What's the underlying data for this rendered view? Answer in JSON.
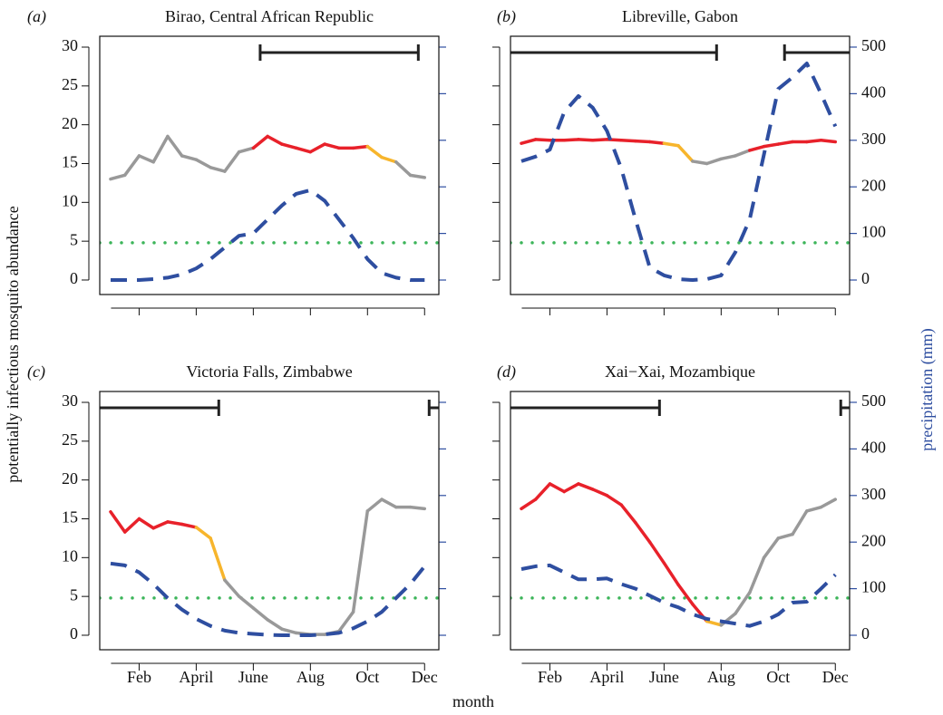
{
  "y_label": "potentially infectious mosquito abundance",
  "y2_label": "precipitation (mm)",
  "x_label": "month",
  "chart_data": [
    {
      "type": "line",
      "panel_label": "(a)",
      "title": "Birao, Central African Republic",
      "x": [
        1,
        1.5,
        2,
        2.5,
        3,
        3.5,
        4,
        4.5,
        5,
        5.5,
        6,
        6.5,
        7,
        7.5,
        8,
        8.5,
        9,
        9.5,
        10,
        10.5,
        11,
        11.5,
        12
      ],
      "series": [
        {
          "values": [
            13,
            13.5,
            16,
            15.2,
            18.5,
            16,
            15.5,
            14.5,
            14,
            16.5,
            17,
            18.5,
            17.5,
            17,
            16.5,
            17.5,
            17,
            17,
            17.2,
            15.8,
            15.2,
            13.5,
            13.2
          ],
          "point_colors": [
            "#999999",
            "#999999",
            "#999999",
            "#999999",
            "#999999",
            "#999999",
            "#999999",
            "#999999",
            "#999999",
            "#999999",
            "#e8212a",
            "#e8212a",
            "#e8212a",
            "#e8212a",
            "#e8212a",
            "#e8212a",
            "#e8212a",
            "#e8212a",
            "#f7b52c",
            "#f7b52c",
            "#999999",
            "#999999",
            "#999999"
          ]
        },
        {
          "values": [
            0,
            0,
            0,
            2,
            5,
            12,
            25,
            45,
            70,
            95,
            100,
            130,
            160,
            185,
            193,
            170,
            130,
            90,
            45,
            15,
            5,
            0,
            0
          ],
          "color": "#2e4ea0",
          "axis": "y2",
          "dashed": true
        }
      ],
      "threshold": 4.8,
      "threshold_color": "#3cb55a",
      "spans": [
        [
          6.24,
          11.78
        ]
      ],
      "xlim": [
        0.62,
        12.5
      ],
      "ylim": [
        -1.87,
        31.4
      ],
      "y2lim": [
        -31.1,
        523.3
      ],
      "xticks": [
        {
          "value": 2,
          "label": "Feb"
        },
        {
          "value": 4,
          "label": "April"
        },
        {
          "value": 6,
          "label": "June"
        },
        {
          "value": 8,
          "label": "Aug"
        },
        {
          "value": 10,
          "label": "Oct"
        },
        {
          "value": 12,
          "label": "Dec"
        }
      ],
      "yticks": [
        0,
        5,
        10,
        15,
        20,
        25,
        30
      ],
      "y2ticks": [
        0,
        100,
        200,
        300,
        400,
        500
      ],
      "show_x_labels": false,
      "show_y_labels": true,
      "show_y2_labels": false
    },
    {
      "type": "line",
      "panel_label": "(b)",
      "title": "Libreville, Gabon",
      "x": [
        1,
        1.5,
        2,
        2.5,
        3,
        3.5,
        4,
        4.5,
        5,
        5.5,
        6,
        6.5,
        7,
        7.5,
        8,
        8.5,
        9,
        9.5,
        10,
        10.5,
        11,
        11.5,
        12
      ],
      "series": [
        {
          "values": [
            17.6,
            18.1,
            18,
            18,
            18.1,
            18,
            18.1,
            18,
            17.9,
            17.8,
            17.6,
            17.3,
            15.3,
            15,
            15.6,
            16,
            16.7,
            17.2,
            17.5,
            17.8,
            17.8,
            18,
            17.8
          ],
          "point_colors": [
            "#e8212a",
            "#e8212a",
            "#e8212a",
            "#e8212a",
            "#e8212a",
            "#e8212a",
            "#e8212a",
            "#e8212a",
            "#e8212a",
            "#e8212a",
            "#f7b52c",
            "#f7b52c",
            "#999999",
            "#999999",
            "#999999",
            "#999999",
            "#e8212a",
            "#e8212a",
            "#e8212a",
            "#e8212a",
            "#e8212a",
            "#e8212a",
            "#e8212a"
          ]
        },
        {
          "values": [
            255,
            265,
            280,
            360,
            395,
            370,
            320,
            240,
            130,
            27,
            10,
            2,
            0,
            2,
            10,
            60,
            130,
            270,
            410,
            435,
            465,
            400,
            330
          ],
          "color": "#2e4ea0",
          "axis": "y2",
          "dashed": true
        }
      ],
      "threshold": 4.8,
      "threshold_color": "#3cb55a",
      "spans": [
        [
          0.62,
          7.84
        ],
        [
          10.22,
          12.5
        ]
      ],
      "xlim": [
        0.62,
        12.5
      ],
      "ylim": [
        -1.87,
        31.4
      ],
      "y2lim": [
        -31.1,
        523.3
      ],
      "xticks": [
        {
          "value": 2,
          "label": "Feb"
        },
        {
          "value": 4,
          "label": "April"
        },
        {
          "value": 6,
          "label": "June"
        },
        {
          "value": 8,
          "label": "Aug"
        },
        {
          "value": 10,
          "label": "Oct"
        },
        {
          "value": 12,
          "label": "Dec"
        }
      ],
      "yticks": [
        0,
        5,
        10,
        15,
        20,
        25,
        30
      ],
      "y2ticks": [
        0,
        100,
        200,
        300,
        400,
        500
      ],
      "show_x_labels": false,
      "show_y_labels": false,
      "show_y2_labels": true
    },
    {
      "type": "line",
      "panel_label": "(c)",
      "title": "Victoria Falls, Zimbabwe",
      "x": [
        1,
        1.5,
        2,
        2.5,
        3,
        3.5,
        4,
        4.5,
        5,
        5.5,
        6,
        6.5,
        7,
        7.5,
        8,
        8.5,
        9,
        9.5,
        10,
        10.5,
        11,
        11.5,
        12
      ],
      "series": [
        {
          "values": [
            15.9,
            13.3,
            15,
            13.8,
            14.6,
            14.3,
            13.9,
            12.5,
            7.1,
            5,
            3.5,
            2,
            0.8,
            0.3,
            0.1,
            0.1,
            0.5,
            3,
            16,
            17.5,
            16.5,
            16.5,
            16.3
          ],
          "point_colors": [
            "#e8212a",
            "#e8212a",
            "#e8212a",
            "#e8212a",
            "#e8212a",
            "#e8212a",
            "#f7b52c",
            "#f7b52c",
            "#999999",
            "#999999",
            "#999999",
            "#999999",
            "#999999",
            "#999999",
            "#999999",
            "#999999",
            "#999999",
            "#999999",
            "#999999",
            "#999999",
            "#999999",
            "#999999",
            "#e8212a"
          ]
        },
        {
          "values": [
            154,
            150,
            135,
            110,
            80,
            55,
            35,
            20,
            10,
            5,
            3,
            1,
            0,
            0,
            0,
            2,
            5,
            15,
            30,
            50,
            80,
            110,
            148
          ],
          "color": "#2e4ea0",
          "axis": "y2",
          "dashed": true
        }
      ],
      "threshold": 4.8,
      "threshold_color": "#3cb55a",
      "spans": [
        [
          0.62,
          4.79
        ],
        [
          12.16,
          12.5
        ]
      ],
      "xlim": [
        0.62,
        12.5
      ],
      "ylim": [
        -1.87,
        31.4
      ],
      "y2lim": [
        -31.1,
        523.3
      ],
      "xticks": [
        {
          "value": 2,
          "label": "Feb"
        },
        {
          "value": 4,
          "label": "April"
        },
        {
          "value": 6,
          "label": "June"
        },
        {
          "value": 8,
          "label": "Aug"
        },
        {
          "value": 10,
          "label": "Oct"
        },
        {
          "value": 12,
          "label": "Dec"
        }
      ],
      "yticks": [
        0,
        5,
        10,
        15,
        20,
        25,
        30
      ],
      "y2ticks": [
        0,
        100,
        200,
        300,
        400,
        500
      ],
      "show_x_labels": true,
      "show_y_labels": true,
      "show_y2_labels": false
    },
    {
      "type": "line",
      "panel_label": "(d)",
      "title": "Xai−Xai, Mozambique",
      "x": [
        1,
        1.5,
        2,
        2.5,
        3,
        3.5,
        4,
        4.5,
        5,
        5.5,
        6,
        6.5,
        7,
        7.5,
        8,
        8.5,
        9,
        9.5,
        10,
        10.5,
        11,
        11.5,
        12
      ],
      "series": [
        {
          "values": [
            16.3,
            17.5,
            19.5,
            18.5,
            19.5,
            18.8,
            18,
            16.8,
            14.5,
            12,
            9.3,
            6.5,
            4,
            1.8,
            1.3,
            2.8,
            5.5,
            10,
            12.5,
            13,
            16,
            16.5,
            17.5
          ],
          "point_colors": [
            "#e8212a",
            "#e8212a",
            "#e8212a",
            "#e8212a",
            "#e8212a",
            "#e8212a",
            "#e8212a",
            "#e8212a",
            "#e8212a",
            "#e8212a",
            "#e8212a",
            "#e8212a",
            "#e8212a",
            "#f7b52c",
            "#999999",
            "#999999",
            "#999999",
            "#999999",
            "#999999",
            "#999999",
            "#999999",
            "#999999",
            "#e8212a"
          ]
        },
        {
          "values": [
            142,
            148,
            150,
            135,
            120,
            120,
            122,
            110,
            100,
            85,
            70,
            60,
            45,
            35,
            30,
            25,
            20,
            30,
            45,
            70,
            72,
            100,
            130
          ],
          "color": "#2e4ea0",
          "axis": "y2",
          "dashed": true
        }
      ],
      "threshold": 4.8,
      "threshold_color": "#3cb55a",
      "spans": [
        [
          0.62,
          5.84
        ],
        [
          12.19,
          12.5
        ]
      ],
      "xlim": [
        0.62,
        12.5
      ],
      "ylim": [
        -1.87,
        31.4
      ],
      "y2lim": [
        -31.1,
        523.3
      ],
      "xticks": [
        {
          "value": 2,
          "label": "Feb"
        },
        {
          "value": 4,
          "label": "April"
        },
        {
          "value": 6,
          "label": "June"
        },
        {
          "value": 8,
          "label": "Aug"
        },
        {
          "value": 10,
          "label": "Oct"
        },
        {
          "value": 12,
          "label": "Dec"
        }
      ],
      "yticks": [
        0,
        5,
        10,
        15,
        20,
        25,
        30
      ],
      "y2ticks": [
        0,
        100,
        200,
        300,
        400,
        500
      ],
      "show_x_labels": true,
      "show_y_labels": false,
      "show_y2_labels": true
    }
  ]
}
